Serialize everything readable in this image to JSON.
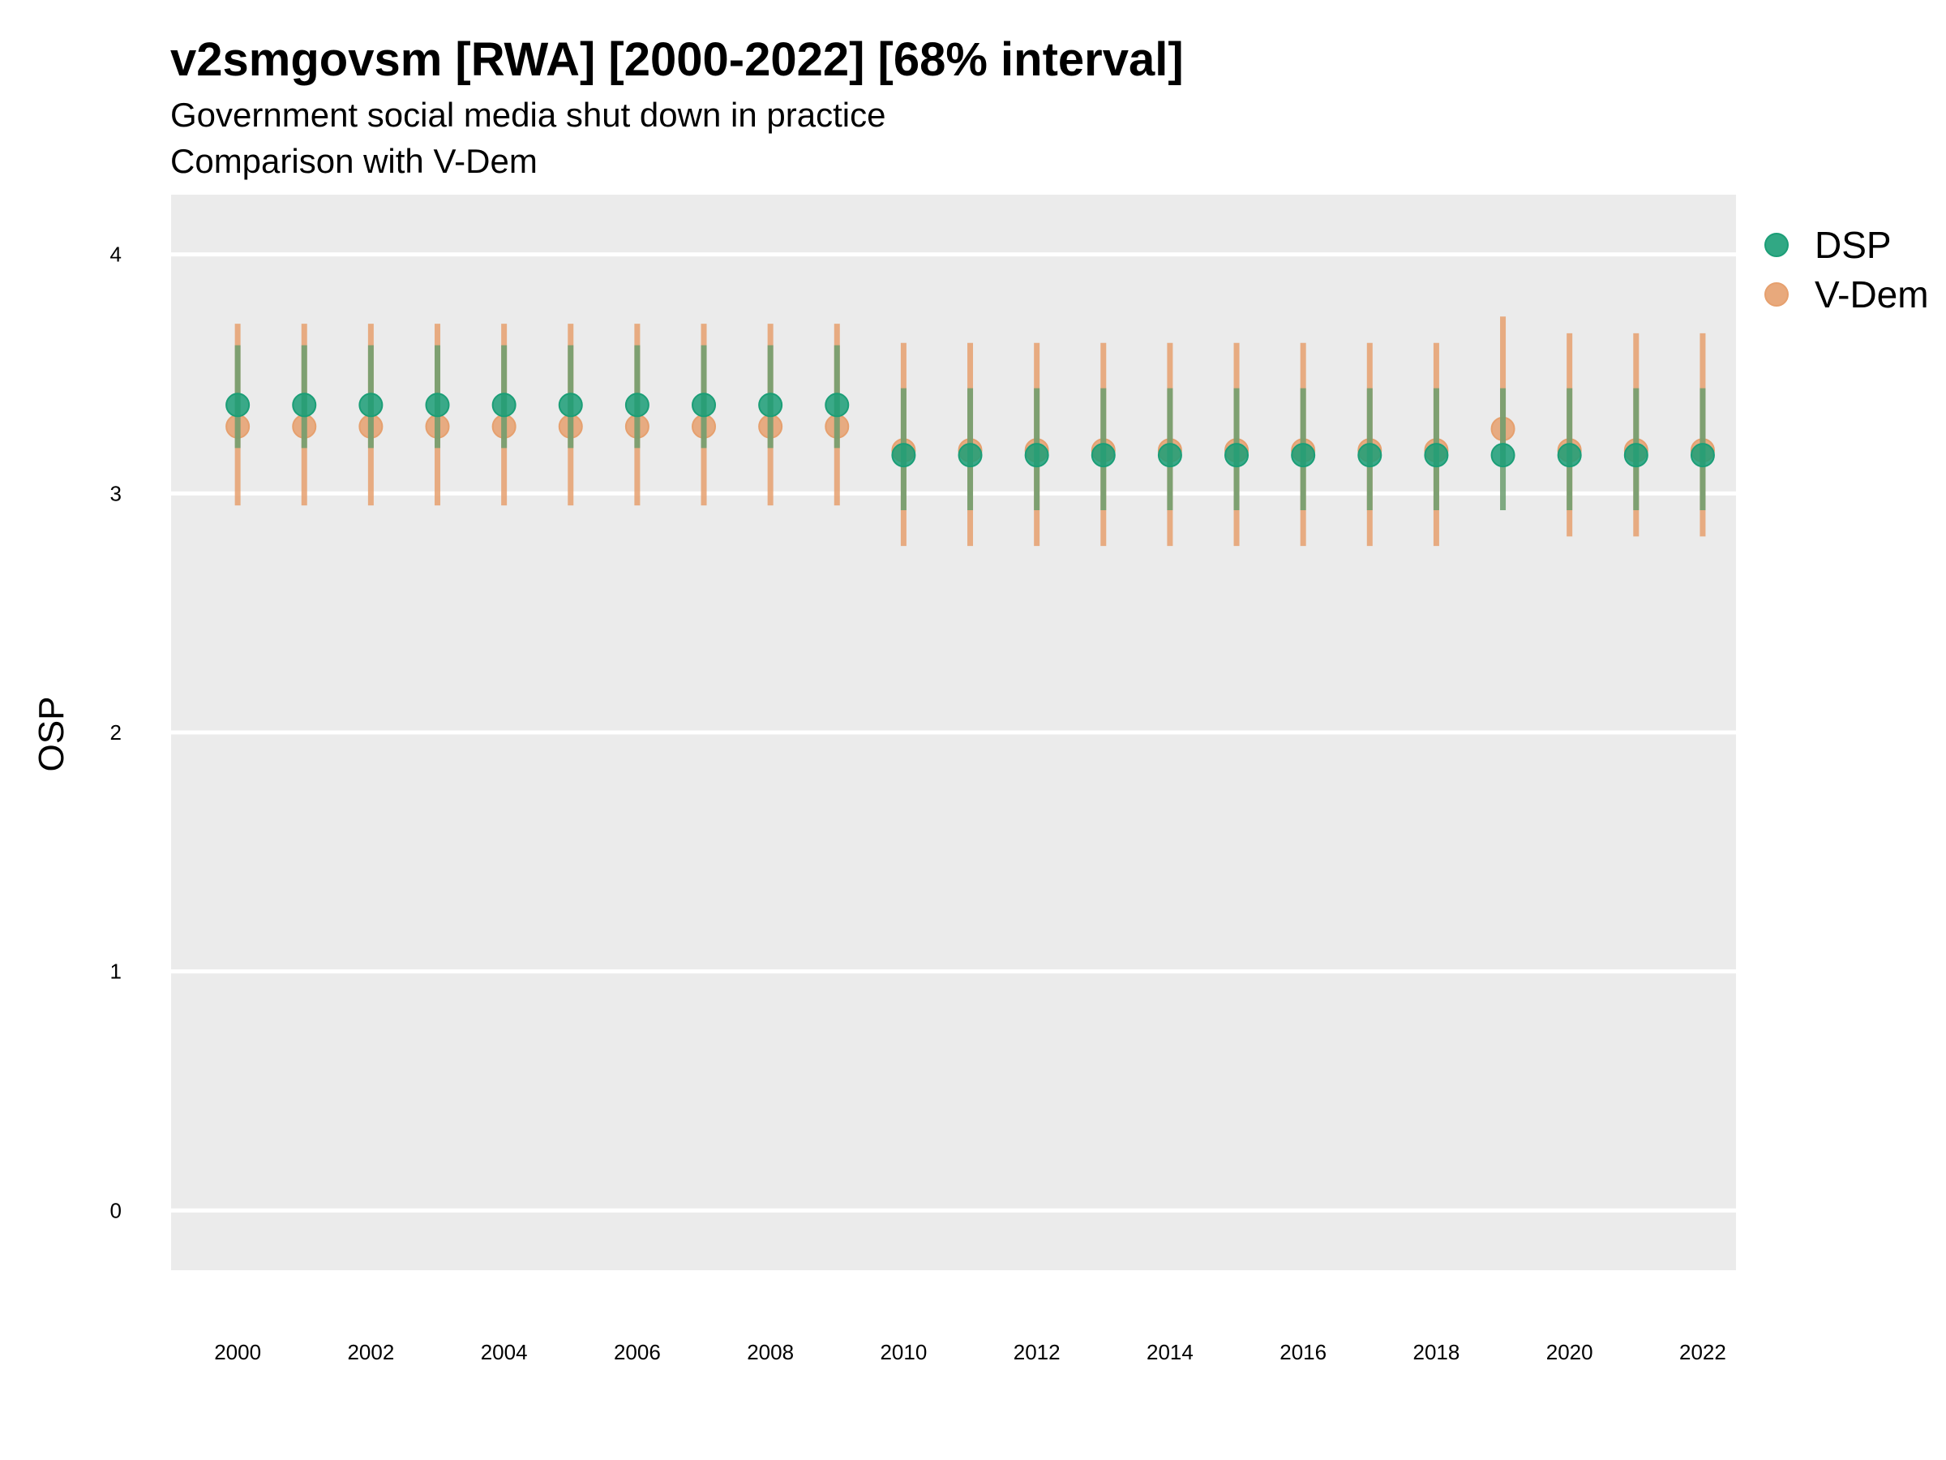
{
  "chart_data": {
    "type": "scatter",
    "title": "v2smgovsm [RWA] [2000-2022] [68% interval]",
    "subtitle": "Government social media shut down in practice",
    "caption": "Comparison with V-Dem",
    "xlabel": "",
    "ylabel": "OSP",
    "xlim": [
      1999,
      2022.5
    ],
    "ylim": [
      -0.25,
      4.25
    ],
    "x_ticks": [
      2000,
      2002,
      2004,
      2006,
      2008,
      2010,
      2012,
      2014,
      2016,
      2018,
      2020,
      2022
    ],
    "y_ticks": [
      0,
      1,
      2,
      3,
      4
    ],
    "grid": true,
    "legend_position": "right",
    "x": [
      2000,
      2001,
      2002,
      2003,
      2004,
      2005,
      2006,
      2007,
      2008,
      2009,
      2010,
      2011,
      2012,
      2013,
      2014,
      2015,
      2016,
      2017,
      2018,
      2019,
      2020,
      2021,
      2022
    ],
    "series": [
      {
        "name": "V-Dem",
        "color": "#E6A06E",
        "values": [
          3.28,
          3.28,
          3.28,
          3.28,
          3.28,
          3.28,
          3.28,
          3.28,
          3.28,
          3.28,
          3.18,
          3.18,
          3.18,
          3.18,
          3.18,
          3.18,
          3.18,
          3.18,
          3.18,
          3.27,
          3.18,
          3.18,
          3.18
        ],
        "lower": [
          2.95,
          2.95,
          2.95,
          2.95,
          2.95,
          2.95,
          2.95,
          2.95,
          2.95,
          2.95,
          2.78,
          2.78,
          2.78,
          2.78,
          2.78,
          2.78,
          2.78,
          2.78,
          2.78,
          3.18,
          2.82,
          2.82,
          2.82
        ],
        "upper": [
          3.71,
          3.71,
          3.71,
          3.71,
          3.71,
          3.71,
          3.71,
          3.71,
          3.71,
          3.71,
          3.63,
          3.63,
          3.63,
          3.63,
          3.63,
          3.63,
          3.63,
          3.63,
          3.63,
          3.74,
          3.67,
          3.67,
          3.67
        ]
      },
      {
        "name": "DSP",
        "color": "#1B9E77",
        "interval_color": "#6B9E6E",
        "values": [
          3.37,
          3.37,
          3.37,
          3.37,
          3.37,
          3.37,
          3.37,
          3.37,
          3.37,
          3.37,
          3.16,
          3.16,
          3.16,
          3.16,
          3.16,
          3.16,
          3.16,
          3.16,
          3.16,
          3.16,
          3.16,
          3.16,
          3.16
        ],
        "lower": [
          3.19,
          3.19,
          3.19,
          3.19,
          3.19,
          3.19,
          3.19,
          3.19,
          3.19,
          3.19,
          2.93,
          2.93,
          2.93,
          2.93,
          2.93,
          2.93,
          2.93,
          2.93,
          2.93,
          2.93,
          2.93,
          2.93,
          2.93
        ],
        "upper": [
          3.62,
          3.62,
          3.62,
          3.62,
          3.62,
          3.62,
          3.62,
          3.62,
          3.62,
          3.62,
          3.44,
          3.44,
          3.44,
          3.44,
          3.44,
          3.44,
          3.44,
          3.44,
          3.44,
          3.44,
          3.44,
          3.44,
          3.44
        ]
      }
    ],
    "legend": [
      {
        "name": "DSP",
        "color": "#1B9E77"
      },
      {
        "name": "V-Dem",
        "color": "#E6A06E"
      }
    ]
  }
}
